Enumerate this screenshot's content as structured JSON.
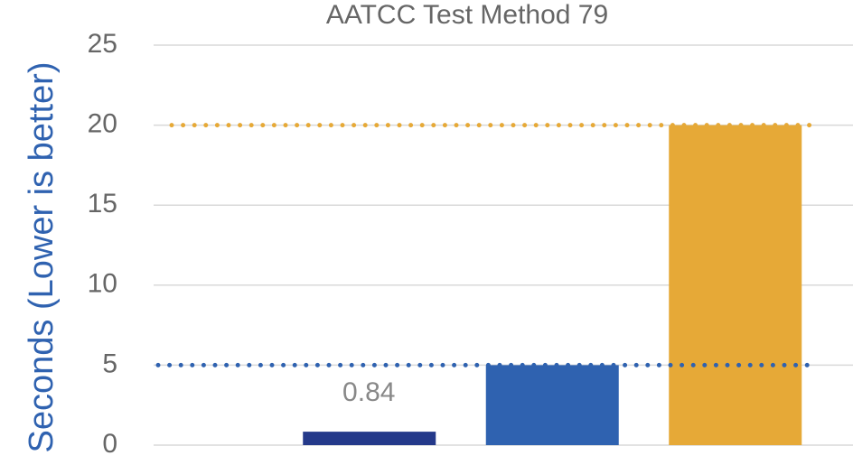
{
  "chart_data": {
    "type": "bar",
    "title": "AATCC Test Method 79",
    "y_label": "Seconds (Lower is better)",
    "categories": [
      null,
      null,
      null
    ],
    "values": [
      0.84,
      5,
      20
    ],
    "value_labels": [
      "0.84",
      null,
      null
    ],
    "colors": [
      "#24398a",
      "#2f62b0",
      "#e6a937"
    ],
    "reference_lines": [
      {
        "value": 20,
        "color": "#e6a937"
      },
      {
        "value": 5,
        "color": "#2f62b0"
      }
    ],
    "ylim": [
      0,
      25
    ],
    "yticks": [
      0,
      5,
      10,
      15,
      20,
      25
    ],
    "grid": true
  }
}
